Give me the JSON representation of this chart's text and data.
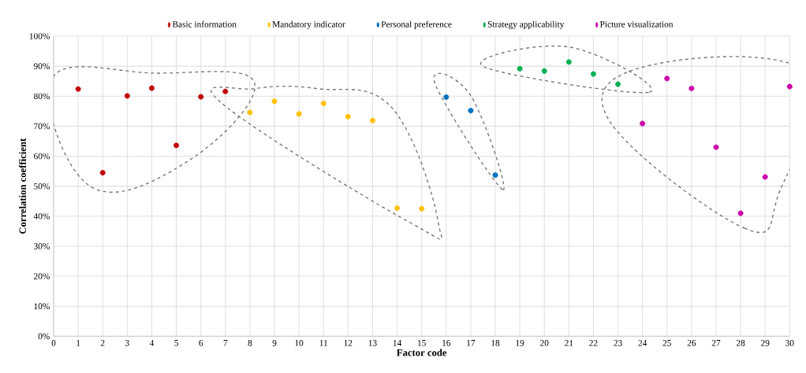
{
  "chart_data": {
    "type": "scatter",
    "xlabel": "Factor code",
    "ylabel": "Correlation coefficient",
    "series": [
      {
        "name": "Basic information",
        "color": "#c00000",
        "x": [
          1,
          2,
          3,
          4,
          5,
          6,
          7
        ],
        "values": [
          82.4,
          54.5,
          80.1,
          82.7,
          63.6,
          79.8,
          81.6
        ]
      },
      {
        "name": "Mandatory indicator",
        "color": "#ffc000",
        "x": [
          8,
          9,
          10,
          11,
          12,
          13,
          14,
          15
        ],
        "values": [
          74.6,
          78.3,
          74.1,
          77.6,
          73.2,
          71.9,
          42.7,
          42.5
        ]
      },
      {
        "name": "Personal preference",
        "color": "#0070c0",
        "x": [
          16,
          17,
          18
        ],
        "values": [
          79.7,
          75.2,
          53.7
        ]
      },
      {
        "name": "Strategy applicability",
        "color": "#00b050",
        "x": [
          19,
          20,
          21,
          22,
          23
        ],
        "values": [
          89.2,
          88.4,
          91.4,
          87.4,
          84.0
        ]
      },
      {
        "name": "Picture visualization",
        "color": "#cc00a8",
        "x": [
          24,
          25,
          26,
          27,
          28,
          29,
          30
        ],
        "values": [
          70.9,
          85.9,
          82.6,
          63.0,
          41.0,
          53.1,
          83.2
        ]
      }
    ],
    "xlim": [
      0,
      30
    ],
    "ylim": [
      0,
      100
    ],
    "xticks": [
      0,
      1,
      2,
      3,
      4,
      5,
      6,
      7,
      8,
      9,
      10,
      11,
      12,
      13,
      14,
      15,
      16,
      17,
      18,
      19,
      20,
      21,
      22,
      23,
      24,
      25,
      26,
      27,
      28,
      29,
      30
    ],
    "yticks": [
      {
        "value": 0,
        "label": "0%"
      },
      {
        "value": 10,
        "label": "10%"
      },
      {
        "value": 20,
        "label": "20%"
      },
      {
        "value": 30,
        "label": "30%"
      },
      {
        "value": 40,
        "label": "40%"
      },
      {
        "value": 50,
        "label": "50%"
      },
      {
        "value": 60,
        "label": "60%"
      },
      {
        "value": 70,
        "label": "70%"
      },
      {
        "value": 80,
        "label": "80%"
      },
      {
        "value": 90,
        "label": "90%"
      },
      {
        "value": 100,
        "label": "100%"
      }
    ],
    "grid": true,
    "legend": "top",
    "marker": "circle"
  }
}
